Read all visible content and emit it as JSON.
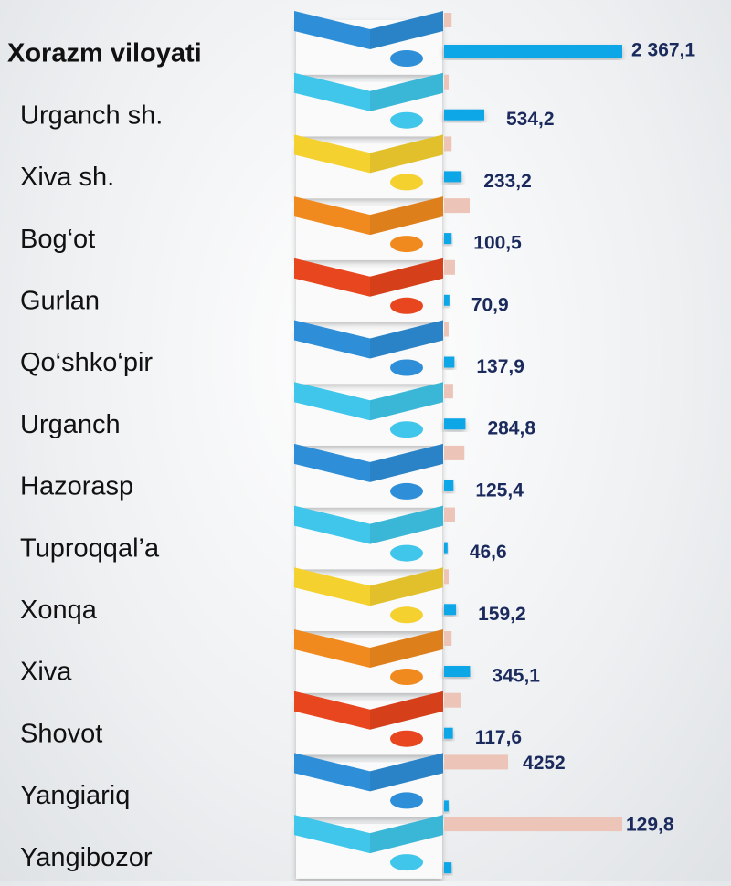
{
  "chart_data": {
    "type": "bar",
    "categories": [
      "Xorazm viloyati",
      "Urganch sh.",
      "Xiva sh.",
      "Bog‘ot",
      "Gurlan",
      "Qo‘shko‘pir",
      "Urganch",
      "Hazorasp",
      "Tupro­qqal’a",
      "Xonqa",
      "Xiva",
      "Shovot",
      "Yangiariq",
      "Yangibozor"
    ],
    "series": [
      {
        "color": "#0fa7e8",
        "values": [
          2367.1,
          534.2,
          233.2,
          100.5,
          70.9,
          137.9,
          284.8,
          125.4,
          46.6,
          159.2,
          345.1,
          117.6,
          60,
          100
        ],
        "value_labels": [
          "2 367,1",
          "534,2",
          "233,2",
          "100,5",
          "70,9",
          "137,9",
          "284,8",
          "125,4",
          "46,6",
          "159,2",
          "345,1",
          "117,6",
          null,
          null
        ]
      },
      {
        "color": "#ecc4b8",
        "values": [
          100,
          60,
          100,
          340,
          145,
          60,
          120,
          270,
          145,
          60,
          100,
          220,
          850,
          2367
        ]
      }
    ],
    "annotations": [
      "4252",
      "129,8"
    ]
  }
}
